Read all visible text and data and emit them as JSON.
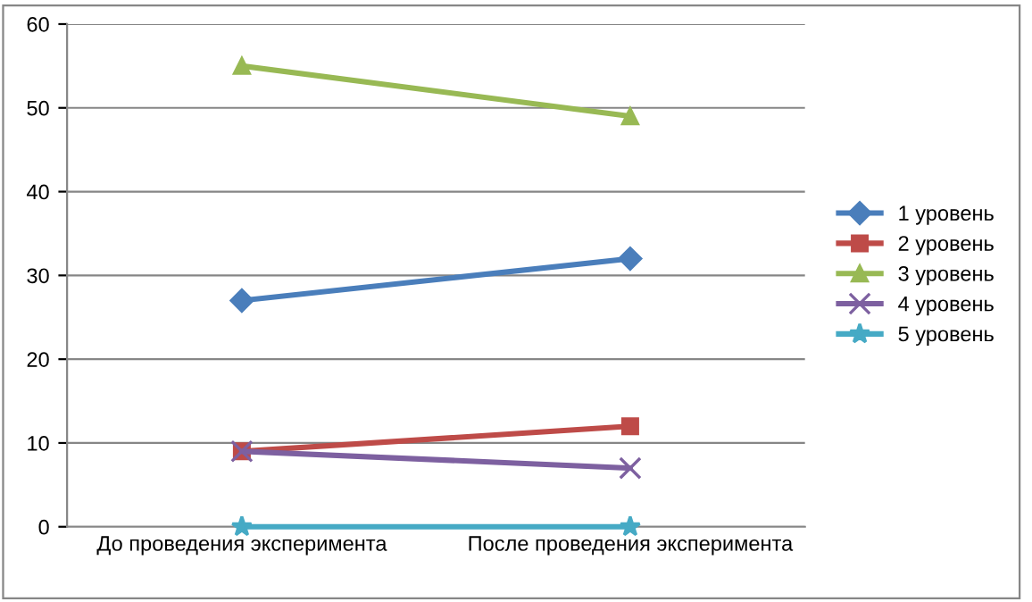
{
  "chart_data": {
    "type": "line",
    "categories": [
      "До проведения эксперимента",
      "После проведения эксперимента"
    ],
    "series": [
      {
        "name": "1 уровень",
        "color": "#4a7ebb",
        "values": [
          27,
          32
        ],
        "marker": "diamond"
      },
      {
        "name": "2 уровень",
        "color": "#be4b48",
        "values": [
          9,
          12
        ],
        "marker": "square"
      },
      {
        "name": "3 уровень",
        "color": "#98b954",
        "values": [
          55,
          49
        ],
        "marker": "triangle"
      },
      {
        "name": "4 уровень",
        "color": "#7d60a0",
        "values": [
          9,
          7
        ],
        "marker": "cross"
      },
      {
        "name": "5 уровень",
        "color": "#46aac5",
        "values": [
          0,
          0
        ],
        "marker": "star"
      }
    ],
    "ylim": [
      0,
      60
    ],
    "yticks": [
      0,
      10,
      20,
      30,
      40,
      50,
      60
    ],
    "grid": "y",
    "legend": "right",
    "line_style": "solid"
  }
}
